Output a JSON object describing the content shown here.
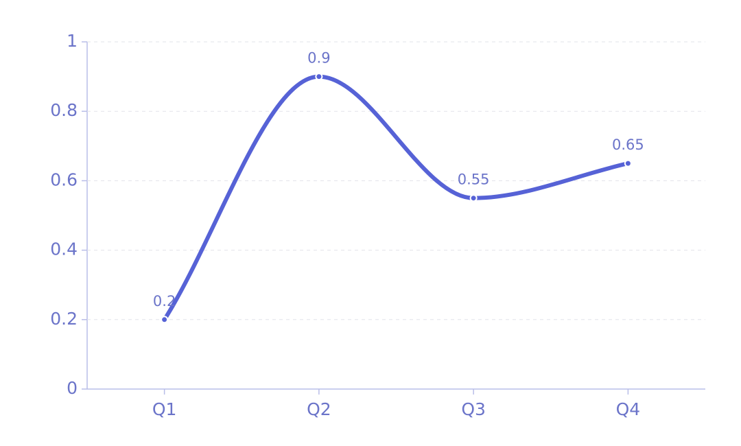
{
  "chart_data": {
    "type": "line",
    "categories": [
      "Q1",
      "Q2",
      "Q3",
      "Q4"
    ],
    "values": [
      0.2,
      0.9,
      0.55,
      0.65
    ],
    "color": "#5662d6",
    "ylim": [
      0,
      1
    ],
    "yticks": [
      0,
      0.2,
      0.4,
      0.6,
      0.8,
      1
    ],
    "grid": true,
    "smooth": true,
    "data_labels": true
  }
}
